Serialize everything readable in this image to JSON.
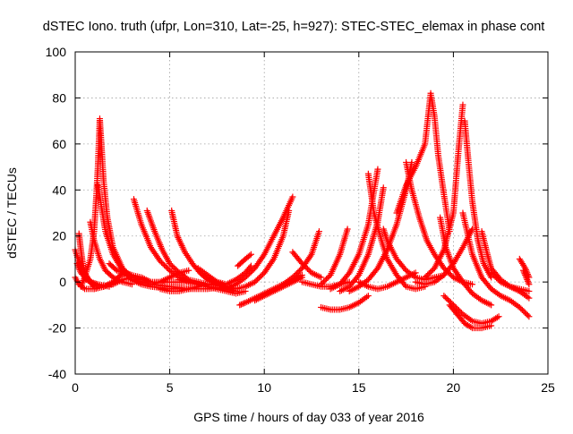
{
  "chart_data": {
    "type": "scatter",
    "title": "dSTEC Iono. truth (ufpr, Lon=310, Lat=-25, h=927): STEC-STEC_elemax in phase cont",
    "xlabel": "GPS time / hours of day 033 of year 2016",
    "ylabel": "dSTEC  / TECUs",
    "xlim": [
      0,
      25
    ],
    "ylim": [
      -40,
      100
    ],
    "x_ticks": [
      0,
      5,
      10,
      15,
      20,
      25
    ],
    "y_ticks": [
      -40,
      -20,
      0,
      20,
      40,
      60,
      80,
      100
    ],
    "grid": true,
    "marker": "+",
    "series_color": "#ff0000",
    "tracks": [
      {
        "x": [
          0.0,
          0.3,
          0.7,
          1.0
        ],
        "y": [
          14,
          6,
          1,
          -2
        ]
      },
      {
        "x": [
          0.0,
          0.2,
          0.5,
          1.0,
          1.5
        ],
        "y": [
          2,
          -1,
          -3,
          -3,
          -2
        ]
      },
      {
        "x": [
          0.1,
          0.3,
          0.6,
          1.0,
          1.5
        ],
        "y": [
          8,
          4,
          1,
          -1,
          -2
        ]
      },
      {
        "x": [
          0.2,
          0.3,
          0.4,
          0.5,
          0.8,
          1.2,
          1.8
        ],
        "y": [
          21,
          14,
          8,
          4,
          0,
          -1,
          -2
        ]
      },
      {
        "x": [
          0.3,
          0.5,
          0.8,
          1.0,
          1.1,
          1.2,
          1.3,
          1.4,
          1.5,
          1.7,
          2.0,
          2.5,
          3.0
        ],
        "y": [
          -2,
          2,
          10,
          22,
          35,
          50,
          71,
          58,
          44,
          28,
          15,
          6,
          2
        ]
      },
      {
        "x": [
          0.8,
          1.0,
          1.3,
          1.6,
          2.0,
          2.5,
          3.0
        ],
        "y": [
          26,
          18,
          10,
          5,
          2,
          0,
          -1
        ]
      },
      {
        "x": [
          1.0,
          1.5,
          2.0,
          2.4,
          2.7,
          3.0
        ],
        "y": [
          -3,
          -2,
          0,
          3,
          4,
          2
        ]
      },
      {
        "x": [
          1.2,
          1.6,
          2.0,
          2.5,
          3.0,
          3.5,
          4.0,
          5.0,
          6.0
        ],
        "y": [
          42,
          22,
          12,
          5,
          1,
          -1,
          -2,
          -3,
          -3
        ]
      },
      {
        "x": [
          1.5,
          2.0,
          2.5,
          3.0,
          3.5,
          4.0,
          5.0,
          6.0
        ],
        "y": [
          -2,
          -1,
          1,
          2,
          1,
          0,
          0,
          0
        ]
      },
      {
        "x": [
          1.8,
          2.2,
          2.6,
          3.0,
          3.5,
          4.0
        ],
        "y": [
          8,
          5,
          4,
          3,
          2,
          0
        ]
      },
      {
        "x": [
          3.1,
          3.5,
          4.0,
          4.5,
          5.0,
          5.5,
          6.0,
          7.0,
          8.0
        ],
        "y": [
          36,
          25,
          15,
          9,
          5,
          2,
          0,
          -2,
          -3
        ]
      },
      {
        "x": [
          3.0,
          3.5,
          4.0,
          5.0,
          6.0,
          7.0,
          8.0
        ],
        "y": [
          1,
          0,
          -1,
          -2,
          -3,
          -3,
          -2
        ]
      },
      {
        "x": [
          3.8,
          4.2,
          4.6,
          5.0,
          5.5,
          6.0,
          7.0,
          8.0
        ],
        "y": [
          31,
          22,
          14,
          8,
          4,
          1,
          -1,
          -2
        ]
      },
      {
        "x": [
          4.0,
          4.5,
          5.0,
          5.5,
          6.0
        ],
        "y": [
          -1,
          0,
          2,
          4,
          5
        ]
      },
      {
        "x": [
          5.1,
          5.4,
          5.8,
          6.2,
          6.6,
          7.0,
          7.5,
          8.0,
          8.5
        ],
        "y": [
          31,
          20,
          13,
          8,
          4,
          1,
          -1,
          -3,
          -4
        ]
      },
      {
        "x": [
          4.5,
          5.0,
          5.5,
          6.0,
          6.5,
          7.0,
          7.5,
          8.0
        ],
        "y": [
          -3,
          -4,
          -4,
          -3,
          -2,
          -1,
          -1,
          -2
        ]
      },
      {
        "x": [
          5.5,
          6.0,
          6.5,
          7.0,
          7.5,
          8.0,
          8.5,
          9.0
        ],
        "y": [
          1,
          0,
          -1,
          -2,
          -3,
          -4,
          -5,
          -4
        ]
      },
      {
        "x": [
          6.5,
          7.0,
          7.5,
          8.0,
          8.5,
          9.0,
          9.5,
          10.0,
          10.5,
          11.0,
          11.3
        ],
        "y": [
          6,
          3,
          0,
          -2,
          -3,
          -2,
          0,
          4,
          10,
          20,
          31
        ]
      },
      {
        "x": [
          7.0,
          7.5,
          8.0,
          8.5,
          9.0,
          9.3
        ],
        "y": [
          2,
          0,
          -1,
          1,
          4,
          7
        ]
      },
      {
        "x": [
          8.0,
          8.5,
          9.0,
          9.5,
          10.0,
          10.5,
          11.0,
          11.5
        ],
        "y": [
          -3,
          -1,
          2,
          6,
          12,
          20,
          28,
          37
        ]
      },
      {
        "x": [
          8.7,
          9.0,
          9.5,
          10.0,
          10.5,
          11.0,
          11.5,
          12.0
        ],
        "y": [
          -10,
          -9,
          -7,
          -5,
          -3,
          -1,
          1,
          3
        ]
      },
      {
        "x": [
          8.6,
          9.0,
          9.3
        ],
        "y": [
          7,
          10,
          12
        ]
      },
      {
        "x": [
          9.5,
          10.0,
          10.5,
          11.0,
          11.5,
          12.0
        ],
        "y": [
          -8,
          -6,
          -4,
          -2,
          0,
          2
        ]
      },
      {
        "x": [
          11.0,
          11.5,
          12.0,
          12.5,
          12.9
        ],
        "y": [
          -1,
          2,
          6,
          12,
          22
        ]
      },
      {
        "x": [
          11.5,
          12.0,
          12.5,
          13.0
        ],
        "y": [
          13,
          8,
          4,
          2
        ]
      },
      {
        "x": [
          12.0,
          12.5,
          13.0,
          13.5,
          14.0,
          14.5
        ],
        "y": [
          0,
          -1,
          -2,
          -2,
          -1,
          0
        ]
      },
      {
        "x": [
          13.0,
          13.5,
          14.0,
          14.5,
          15.0,
          15.5
        ],
        "y": [
          -11,
          -12,
          -12,
          -11,
          -9,
          -6
        ]
      },
      {
        "x": [
          13.0,
          13.5,
          14.0,
          14.4
        ],
        "y": [
          -1,
          3,
          12,
          23
        ]
      },
      {
        "x": [
          13.5,
          14.0,
          14.5,
          15.0,
          15.5,
          16.0
        ],
        "y": [
          -3,
          -1,
          4,
          12,
          25,
          49
        ]
      },
      {
        "x": [
          14.0,
          14.5,
          15.0,
          15.5,
          16.0,
          16.3
        ],
        "y": [
          -4,
          -2,
          3,
          12,
          26,
          41
        ]
      },
      {
        "x": [
          14.5,
          15.0,
          15.5,
          16.0,
          16.5,
          17.0,
          17.5,
          17.8
        ],
        "y": [
          -4,
          -2,
          1,
          6,
          14,
          25,
          40,
          52
        ]
      },
      {
        "x": [
          15.0,
          15.5,
          16.0,
          16.5,
          17.0,
          17.5,
          18.0
        ],
        "y": [
          0,
          -2,
          -3,
          -2,
          0,
          2,
          4
        ]
      },
      {
        "x": [
          15.5,
          15.8,
          16.2,
          16.5,
          17.0,
          17.5,
          18.0,
          18.5
        ],
        "y": [
          47,
          30,
          18,
          10,
          3,
          -2,
          -3,
          -2
        ]
      },
      {
        "x": [
          16.3,
          16.5,
          17.0,
          17.5,
          18.0,
          18.5,
          19.0,
          19.5
        ],
        "y": [
          23,
          18,
          10,
          5,
          2,
          1,
          2,
          3
        ]
      },
      {
        "x": [
          17.5,
          17.8,
          18.2,
          18.6,
          19.0,
          19.5,
          20.0,
          20.5,
          21.0
        ],
        "y": [
          52,
          40,
          28,
          18,
          12,
          6,
          2,
          0,
          -1
        ]
      },
      {
        "x": [
          17.0,
          17.5,
          18.0,
          18.5,
          18.8,
          19.0,
          19.2,
          19.5,
          19.8
        ],
        "y": [
          30,
          42,
          50,
          60,
          82,
          72,
          55,
          38,
          22
        ]
      },
      {
        "x": [
          18.0,
          18.5,
          19.0,
          19.5,
          20.0,
          20.5,
          21.0
        ],
        "y": [
          0,
          -1,
          0,
          3,
          8,
          15,
          23
        ]
      },
      {
        "x": [
          18.5,
          19.0,
          19.5,
          20.0,
          20.3,
          20.5
        ],
        "y": [
          2,
          6,
          14,
          30,
          60,
          77
        ]
      },
      {
        "x": [
          19.3,
          19.6,
          20.0,
          20.5,
          21.0,
          21.5,
          22.0
        ],
        "y": [
          28,
          15,
          6,
          0,
          -5,
          -8,
          -10
        ]
      },
      {
        "x": [
          20.6,
          20.8,
          21.0,
          21.3,
          21.6,
          22.0
        ],
        "y": [
          70,
          52,
          35,
          18,
          8,
          2
        ]
      },
      {
        "x": [
          19.5,
          20.0,
          20.5,
          21.0,
          21.5,
          22.0,
          22.4
        ],
        "y": [
          -6,
          -10,
          -14,
          -17,
          -18,
          -17,
          -15
        ]
      },
      {
        "x": [
          19.8,
          20.2,
          20.6,
          21.0,
          21.5,
          22.0
        ],
        "y": [
          -10,
          -14,
          -18,
          -20,
          -20,
          -19
        ]
      },
      {
        "x": [
          20.5,
          21.0,
          21.5,
          22.0,
          22.5,
          23.0,
          23.5,
          24.0
        ],
        "y": [
          30,
          12,
          2,
          -3,
          -6,
          -8,
          -11,
          -15
        ]
      },
      {
        "x": [
          21.5,
          21.8,
          22.0,
          22.5,
          23.0,
          23.5,
          24.0
        ],
        "y": [
          22,
          12,
          6,
          1,
          -2,
          -4,
          -7
        ]
      },
      {
        "x": [
          22.0,
          22.5,
          23.0,
          23.5,
          24.0
        ],
        "y": [
          4,
          0,
          -2,
          -3,
          -4
        ]
      },
      {
        "x": [
          23.5,
          23.8,
          24.0
        ],
        "y": [
          10,
          6,
          2
        ]
      },
      {
        "x": [
          23.7,
          23.9,
          24.0
        ],
        "y": [
          5,
          1,
          -1
        ]
      }
    ]
  }
}
